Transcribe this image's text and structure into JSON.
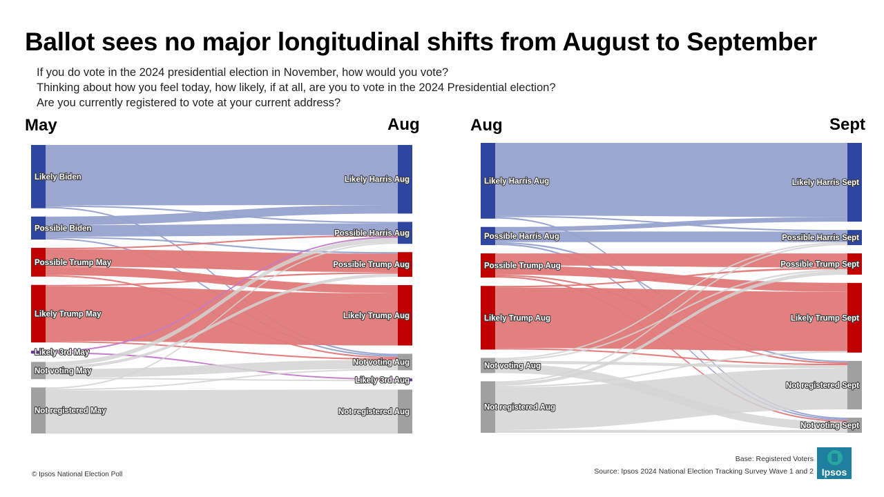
{
  "title": "Ballot sees no major longitudinal shifts from August to September",
  "questions": [
    "If you do vote in the 2024 presidential election in November, how would you vote?",
    "Thinking about how you feel today, how likely, if at all, are you to vote in the 2024 Presidential election?",
    "Are you currently registered to vote at your current address?"
  ],
  "footer": {
    "copyright": "© Ipsos National Election Poll",
    "base": "Base: Registered Voters",
    "source": "Source: Ipsos 2024 National Election Tracking Survey Wave 1 and 2",
    "logo": "Ipsos"
  },
  "colors": {
    "blue_node": "#2f46a0",
    "blue_flow": "#96a2cf",
    "red_node": "#c00000",
    "red_flow": "#e07979",
    "gray_node": "#a0a0a0",
    "gray_flow": "#d3d3d3",
    "purple_node": "#7030a0",
    "purple_flow": "#c27ac9"
  },
  "chart_data": [
    {
      "type": "sankey",
      "from_label": "May",
      "to_label": "Aug",
      "nodes_left": [
        {
          "id": "lb",
          "name": "Likely Biden",
          "group": "blue",
          "value": 22
        },
        {
          "id": "pb",
          "name": "Possible Biden",
          "group": "blue",
          "value": 8
        },
        {
          "id": "ptm",
          "name": "Possible Trump May",
          "group": "red",
          "value": 10
        },
        {
          "id": "ltm",
          "name": "Likely Trump May",
          "group": "red",
          "value": 20
        },
        {
          "id": "l3m",
          "name": "Likely 3rd May",
          "group": "purple",
          "value": 1
        },
        {
          "id": "nvm",
          "name": "Not voting May",
          "group": "gray",
          "value": 6
        },
        {
          "id": "nrm",
          "name": "Not registered May",
          "group": "gray",
          "value": 16
        }
      ],
      "nodes_right": [
        {
          "id": "lha",
          "name": "Likely Harris Aug",
          "group": "blue",
          "value": 25
        },
        {
          "id": "pha",
          "name": "Possible Harris Aug",
          "group": "blue",
          "value": 8
        },
        {
          "id": "pta",
          "name": "Possible Trump Aug",
          "group": "red",
          "value": 9
        },
        {
          "id": "lta",
          "name": "Likely Trump Aug",
          "group": "red",
          "value": 22
        },
        {
          "id": "nva",
          "name": "Not voting Aug",
          "group": "gray",
          "value": 6
        },
        {
          "id": "l3a",
          "name": "Likely 3rd Aug",
          "group": "purple",
          "value": 1
        },
        {
          "id": "nra",
          "name": "Not registered Aug",
          "group": "gray",
          "value": 16
        }
      ],
      "links": [
        {
          "source": "lb",
          "target": "lha",
          "value": 21
        },
        {
          "source": "lb",
          "target": "pha",
          "value": 0.5
        },
        {
          "source": "lb",
          "target": "nva",
          "value": 0.5
        },
        {
          "source": "pb",
          "target": "lha",
          "value": 3
        },
        {
          "source": "pb",
          "target": "pha",
          "value": 4
        },
        {
          "source": "pb",
          "target": "pta",
          "value": 0.5
        },
        {
          "source": "pb",
          "target": "nva",
          "value": 0.5
        },
        {
          "source": "ptm",
          "target": "pha",
          "value": 0.5
        },
        {
          "source": "ptm",
          "target": "pta",
          "value": 6
        },
        {
          "source": "ptm",
          "target": "lta",
          "value": 3
        },
        {
          "source": "ptm",
          "target": "nva",
          "value": 0.5
        },
        {
          "source": "ltm",
          "target": "pta",
          "value": 0.5
        },
        {
          "source": "ltm",
          "target": "lta",
          "value": 19
        },
        {
          "source": "ltm",
          "target": "nva",
          "value": 0.5
        },
        {
          "source": "l3m",
          "target": "l3a",
          "value": 0.5
        },
        {
          "source": "l3m",
          "target": "pha",
          "value": 0.5
        },
        {
          "source": "nvm",
          "target": "pha",
          "value": 1.5
        },
        {
          "source": "nvm",
          "target": "pta",
          "value": 1
        },
        {
          "source": "nvm",
          "target": "nva",
          "value": 3
        },
        {
          "source": "nvm",
          "target": "l3a",
          "value": 0.5
        },
        {
          "source": "nrm",
          "target": "pha",
          "value": 0.5
        },
        {
          "source": "nrm",
          "target": "nva",
          "value": 0.5
        },
        {
          "source": "nrm",
          "target": "nra",
          "value": 15
        }
      ]
    },
    {
      "type": "sankey",
      "from_label": "Aug",
      "to_label": "Sept",
      "nodes_left": [
        {
          "id": "lha2",
          "name": "Likely Harris Aug",
          "group": "blue",
          "value": 25
        },
        {
          "id": "pha2",
          "name": "Possible Harris Aug",
          "group": "blue",
          "value": 6
        },
        {
          "id": "pta2",
          "name": "Possible Trump Aug",
          "group": "red",
          "value": 8
        },
        {
          "id": "lta2",
          "name": "Likely Trump Aug",
          "group": "red",
          "value": 21
        },
        {
          "id": "nva2",
          "name": "Not voting Aug",
          "group": "gray",
          "value": 5
        },
        {
          "id": "nra2",
          "name": "Not registered Aug",
          "group": "gray",
          "value": 17
        }
      ],
      "nodes_right": [
        {
          "id": "lhs",
          "name": "Likely Harris Sept",
          "group": "blue",
          "value": 26
        },
        {
          "id": "phs",
          "name": "Possible Harris Sept",
          "group": "blue",
          "value": 5
        },
        {
          "id": "pts",
          "name": "Possible Trump Sept",
          "group": "red",
          "value": 7
        },
        {
          "id": "lts",
          "name": "Likely Trump Sept",
          "group": "red",
          "value": 23
        },
        {
          "id": "nrs",
          "name": "Not registered Sept",
          "group": "gray",
          "value": 16
        },
        {
          "id": "nvs",
          "name": "Not voting Sept",
          "group": "gray",
          "value": 5
        }
      ],
      "links": [
        {
          "source": "lha2",
          "target": "lhs",
          "value": 24
        },
        {
          "source": "lha2",
          "target": "nvs",
          "value": 0.5
        },
        {
          "source": "lha2",
          "target": "phs",
          "value": 0.5
        },
        {
          "source": "pha2",
          "target": "lhs",
          "value": 1.5
        },
        {
          "source": "pha2",
          "target": "phs",
          "value": 3.5
        },
        {
          "source": "pha2",
          "target": "nrs",
          "value": 0.5
        },
        {
          "source": "pha2",
          "target": "nvs",
          "value": 0.5
        },
        {
          "source": "pta2",
          "target": "pts",
          "value": 4
        },
        {
          "source": "pta2",
          "target": "lts",
          "value": 3
        },
        {
          "source": "pta2",
          "target": "nrs",
          "value": 0.5
        },
        {
          "source": "pta2",
          "target": "nvs",
          "value": 0.5
        },
        {
          "source": "lta2",
          "target": "pts",
          "value": 0.5
        },
        {
          "source": "lta2",
          "target": "lts",
          "value": 20
        },
        {
          "source": "lta2",
          "target": "nrs",
          "value": 0.5
        },
        {
          "source": "nva2",
          "target": "phs",
          "value": 0.5
        },
        {
          "source": "nva2",
          "target": "pts",
          "value": 0.5
        },
        {
          "source": "nva2",
          "target": "nrs",
          "value": 1
        },
        {
          "source": "nva2",
          "target": "nvs",
          "value": 3
        },
        {
          "source": "nra2",
          "target": "phs",
          "value": 0.5
        },
        {
          "source": "nra2",
          "target": "pts",
          "value": 1
        },
        {
          "source": "nra2",
          "target": "lts",
          "value": 0.5
        },
        {
          "source": "nra2",
          "target": "nrs",
          "value": 14
        },
        {
          "source": "nra2",
          "target": "nvs",
          "value": 1
        }
      ]
    }
  ]
}
